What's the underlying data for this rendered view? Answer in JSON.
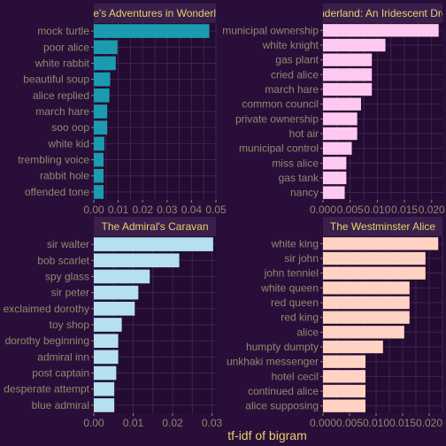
{
  "colors": {
    "background": "#2a0e3a",
    "panel_background": "#230b31",
    "grid": "#3d2550",
    "strip_background": "#3a1f4c",
    "strip_text": "#e8cf6a",
    "tick_text": "#8c8b6c",
    "axis_title": "#e8cf6a"
  },
  "chart_data": {
    "type": "bar",
    "orientation": "horizontal",
    "xlabel": "tf-idf of bigram",
    "ylabel": "",
    "panels": [
      {
        "title": "Alice's Adventures in Wonderland",
        "color": "#1a9bb0",
        "xlim": [
          0,
          0.05
        ],
        "xticks": [
          0,
          0.01,
          0.02,
          0.03,
          0.04,
          0.05
        ],
        "xtick_labels": [
          "0.00",
          "0.01",
          "0.02",
          "0.03",
          "0.04",
          "0.05"
        ],
        "categories": [
          "mock turtle",
          "poor alice",
          "white rabbit",
          "beautiful soup",
          "alice replied",
          "march hare",
          "soo oop",
          "white kid",
          "trembling voice",
          "rabbit hole",
          "offended tone"
        ],
        "values": [
          0.0473,
          0.0097,
          0.009,
          0.0067,
          0.0064,
          0.0055,
          0.0055,
          0.0043,
          0.004,
          0.004,
          0.004
        ]
      },
      {
        "title": "Blunderland: An Iridescent Dream",
        "color": "#ffc8f0",
        "xlim": [
          0,
          0.022
        ],
        "xticks": [
          0,
          0.005,
          0.01,
          0.015,
          0.02
        ],
        "xtick_labels": [
          "0.000",
          "0.005",
          "0.010",
          "0.015",
          "0.020"
        ],
        "categories": [
          "municipal ownership",
          "white knight",
          "gas plant",
          "cried alice",
          "march hare",
          "common council",
          "private ownership",
          "hot air",
          "municipal control",
          "miss alice",
          "gas tank",
          "nancy"
        ],
        "values": [
          0.0213,
          0.0115,
          0.009,
          0.009,
          0.009,
          0.007,
          0.0063,
          0.0063,
          0.0053,
          0.0043,
          0.0043,
          0.004
        ]
      },
      {
        "title": "The Admiral's Caravan",
        "color": "#b4e0f0",
        "xlim": [
          0,
          0.031
        ],
        "xticks": [
          0,
          0.01,
          0.02,
          0.03
        ],
        "xtick_labels": [
          "0.00",
          "0.01",
          "0.02",
          "0.03"
        ],
        "categories": [
          "sir walter",
          "bob scarlet",
          "spy glass",
          "sir peter",
          "exclaimed dorothy",
          "toy shop",
          "dorothy beginning",
          "admiral inn",
          "post captain",
          "desperate attempt",
          "blue admiral"
        ],
        "values": [
          0.0303,
          0.0217,
          0.0142,
          0.0113,
          0.0104,
          0.0071,
          0.0062,
          0.0062,
          0.0057,
          0.0052,
          0.0052
        ]
      },
      {
        "title": "The Westminster Alice",
        "color": "#ffd2c3",
        "xlim": [
          0,
          0.0225
        ],
        "xticks": [
          0,
          0.005,
          0.01,
          0.015,
          0.02
        ],
        "xtick_labels": [
          "0.000",
          "0.005",
          "0.010",
          "0.015",
          "0.020"
        ],
        "categories": [
          "white king",
          "sir john",
          "john tenniel",
          "white queen",
          "red queen",
          "red king",
          "alice",
          "humpty dumpty",
          "unkhaki messenger",
          "hotel cecil",
          "continued alice",
          "alice supposing"
        ],
        "values": [
          0.0217,
          0.0193,
          0.0193,
          0.0163,
          0.0163,
          0.0163,
          0.0153,
          0.0113,
          0.008,
          0.008,
          0.008,
          0.008
        ]
      }
    ]
  }
}
